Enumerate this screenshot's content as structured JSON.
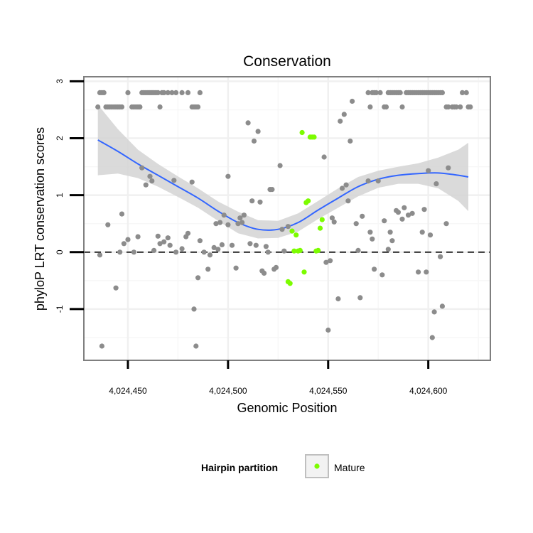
{
  "chart_data": {
    "type": "scatter",
    "title": "Conservation",
    "xlabel": "Genomic Position",
    "ylabel": "phyloP LRT conservation scores",
    "xlim": [
      4024428,
      4024631
    ],
    "ylim": [
      -1.9,
      3.08
    ],
    "x_ticks": [
      4024450,
      4024500,
      4024550,
      4024600
    ],
    "x_tick_labels": [
      "4,024,450",
      "4,024,500",
      "4,024,550",
      "4,024,600"
    ],
    "y_ticks": [
      -1,
      0,
      1,
      2,
      3
    ],
    "y_tick_labels": [
      "-1",
      "0",
      "1",
      "2",
      "3"
    ],
    "reference_line": {
      "y": 0,
      "style": "dashed"
    },
    "grid": true,
    "legend": {
      "title": "Hairpin partition",
      "position": "bottom",
      "entries": [
        {
          "label": "Mature",
          "color": "#7CFC00"
        }
      ]
    },
    "colors": {
      "points": "#8c8c8c",
      "mature": "#7CFC00",
      "smooth_line": "#3366FF",
      "ribbon": "#d3d3d3"
    },
    "series": [
      {
        "points": [
          [
            4024435,
            2.55
          ],
          [
            4024436,
            2.8
          ],
          [
            4024437,
            2.8
          ],
          [
            4024438,
            2.8
          ],
          [
            4024439,
            2.55
          ],
          [
            4024440,
            2.55
          ],
          [
            4024441,
            2.55
          ],
          [
            4024442,
            2.55
          ],
          [
            4024443,
            2.55
          ],
          [
            4024444,
            2.55
          ],
          [
            4024445,
            2.55
          ],
          [
            4024446,
            2.55
          ],
          [
            4024447,
            2.55
          ],
          [
            4024450,
            2.8
          ],
          [
            4024452,
            2.55
          ],
          [
            4024453,
            2.55
          ],
          [
            4024454,
            2.55
          ],
          [
            4024455,
            2.55
          ],
          [
            4024456,
            2.55
          ],
          [
            4024457,
            2.8
          ],
          [
            4024458,
            2.8
          ],
          [
            4024459,
            2.8
          ],
          [
            4024460,
            2.8
          ],
          [
            4024461,
            2.8
          ],
          [
            4024462,
            2.8
          ],
          [
            4024463,
            2.8
          ],
          [
            4024464,
            2.8
          ],
          [
            4024465,
            2.8
          ],
          [
            4024466,
            2.55
          ],
          [
            4024467,
            2.8
          ],
          [
            4024468,
            2.8
          ],
          [
            4024470,
            2.8
          ],
          [
            4024472,
            2.8
          ],
          [
            4024474,
            2.8
          ],
          [
            4024477,
            2.8
          ],
          [
            4024480,
            2.8
          ],
          [
            4024482,
            2.55
          ],
          [
            4024483,
            2.55
          ],
          [
            4024484,
            2.55
          ],
          [
            4024485,
            2.55
          ],
          [
            4024486,
            2.8
          ],
          [
            4024570,
            2.8
          ],
          [
            4024571,
            2.55
          ],
          [
            4024572,
            2.8
          ],
          [
            4024573,
            2.8
          ],
          [
            4024574,
            2.8
          ],
          [
            4024576,
            2.8
          ],
          [
            4024578,
            2.55
          ],
          [
            4024579,
            2.55
          ],
          [
            4024580,
            2.8
          ],
          [
            4024581,
            2.8
          ],
          [
            4024582,
            2.8
          ],
          [
            4024583,
            2.8
          ],
          [
            4024584,
            2.8
          ],
          [
            4024585,
            2.8
          ],
          [
            4024586,
            2.8
          ],
          [
            4024587,
            2.55
          ],
          [
            4024589,
            2.8
          ],
          [
            4024590,
            2.8
          ],
          [
            4024591,
            2.8
          ],
          [
            4024592,
            2.8
          ],
          [
            4024593,
            2.8
          ],
          [
            4024594,
            2.8
          ],
          [
            4024595,
            2.8
          ],
          [
            4024596,
            2.8
          ],
          [
            4024597,
            2.8
          ],
          [
            4024598,
            2.8
          ],
          [
            4024599,
            2.8
          ],
          [
            4024600,
            2.8
          ],
          [
            4024601,
            2.8
          ],
          [
            4024602,
            2.8
          ],
          [
            4024603,
            2.8
          ],
          [
            4024604,
            2.8
          ],
          [
            4024605,
            2.8
          ],
          [
            4024606,
            2.8
          ],
          [
            4024607,
            2.8
          ],
          [
            4024609,
            2.55
          ],
          [
            4024610,
            2.55
          ],
          [
            4024612,
            2.55
          ],
          [
            4024613,
            2.55
          ],
          [
            4024614,
            2.55
          ],
          [
            4024616,
            2.55
          ],
          [
            4024617,
            2.8
          ],
          [
            4024619,
            2.8
          ],
          [
            4024620,
            2.55
          ],
          [
            4024621,
            2.55
          ],
          [
            4024436,
            -0.05
          ],
          [
            4024437,
            -1.65
          ],
          [
            4024440,
            0.48
          ],
          [
            4024444,
            -0.63
          ],
          [
            4024446,
            0.0
          ],
          [
            4024447,
            0.67
          ],
          [
            4024448,
            0.15
          ],
          [
            4024450,
            0.22
          ],
          [
            4024453,
            0.0
          ],
          [
            4024455,
            0.27
          ],
          [
            4024457,
            1.48
          ],
          [
            4024459,
            1.18
          ],
          [
            4024461,
            1.33
          ],
          [
            4024462,
            1.25
          ],
          [
            4024463,
            0.03
          ],
          [
            4024465,
            0.28
          ],
          [
            4024466,
            0.15
          ],
          [
            4024468,
            0.18
          ],
          [
            4024470,
            0.25
          ],
          [
            4024471,
            0.12
          ],
          [
            4024473,
            1.26
          ],
          [
            4024474,
            0.0
          ],
          [
            4024477,
            0.06
          ],
          [
            4024479,
            0.27
          ],
          [
            4024480,
            0.33
          ],
          [
            4024482,
            1.23
          ],
          [
            4024483,
            -1.0
          ],
          [
            4024484,
            -1.65
          ],
          [
            4024485,
            -0.45
          ],
          [
            4024486,
            0.2
          ],
          [
            4024488,
            0.0
          ],
          [
            4024490,
            -0.3
          ],
          [
            4024491,
            -0.05
          ],
          [
            4024493,
            0.08
          ],
          [
            4024494,
            0.5
          ],
          [
            4024495,
            0.05
          ],
          [
            4024496,
            0.52
          ],
          [
            4024497,
            0.13
          ],
          [
            4024498,
            0.65
          ],
          [
            4024500,
            0.48
          ],
          [
            4024500,
            1.33
          ],
          [
            4024502,
            0.12
          ],
          [
            4024504,
            -0.28
          ],
          [
            4024505,
            0.5
          ],
          [
            4024506,
            0.6
          ],
          [
            4024507,
            0.52
          ],
          [
            4024508,
            0.65
          ],
          [
            4024510,
            2.27
          ],
          [
            4024511,
            0.15
          ],
          [
            4024512,
            0.9
          ],
          [
            4024513,
            1.95
          ],
          [
            4024514,
            0.12
          ],
          [
            4024515,
            2.12
          ],
          [
            4024516,
            0.88
          ],
          [
            4024517,
            -0.33
          ],
          [
            4024518,
            -0.37
          ],
          [
            4024519,
            0.1
          ],
          [
            4024520,
            0.0
          ],
          [
            4024521,
            1.1
          ],
          [
            4024522,
            1.1
          ],
          [
            4024523,
            -0.3
          ],
          [
            4024524,
            -0.27
          ],
          [
            4024526,
            1.52
          ],
          [
            4024527,
            0.4
          ],
          [
            4024528,
            0.02
          ],
          [
            4024530,
            0.45
          ],
          [
            4024548,
            1.67
          ],
          [
            4024549,
            -0.18
          ],
          [
            4024550,
            -1.37
          ],
          [
            4024551,
            -0.15
          ],
          [
            4024552,
            0.6
          ],
          [
            4024553,
            0.53
          ],
          [
            4024555,
            -0.82
          ],
          [
            4024556,
            2.3
          ],
          [
            4024557,
            1.12
          ],
          [
            4024558,
            2.42
          ],
          [
            4024559,
            1.18
          ],
          [
            4024560,
            0.9
          ],
          [
            4024561,
            1.95
          ],
          [
            4024562,
            2.65
          ],
          [
            4024564,
            0.5
          ],
          [
            4024565,
            0.03
          ],
          [
            4024566,
            -0.8
          ],
          [
            4024567,
            0.63
          ],
          [
            4024570,
            1.25
          ],
          [
            4024571,
            0.35
          ],
          [
            4024572,
            0.23
          ],
          [
            4024573,
            -0.3
          ],
          [
            4024575,
            1.25
          ],
          [
            4024577,
            -0.4
          ],
          [
            4024578,
            0.55
          ],
          [
            4024580,
            0.05
          ],
          [
            4024581,
            0.35
          ],
          [
            4024582,
            0.2
          ],
          [
            4024584,
            0.73
          ],
          [
            4024585,
            0.7
          ],
          [
            4024587,
            0.58
          ],
          [
            4024588,
            0.78
          ],
          [
            4024590,
            0.65
          ],
          [
            4024592,
            0.68
          ],
          [
            4024595,
            -0.35
          ],
          [
            4024597,
            0.35
          ],
          [
            4024598,
            0.75
          ],
          [
            4024599,
            -0.35
          ],
          [
            4024600,
            1.43
          ],
          [
            4024601,
            0.3
          ],
          [
            4024602,
            -1.5
          ],
          [
            4024603,
            -1.05
          ],
          [
            4024604,
            1.2
          ],
          [
            4024606,
            -0.08
          ],
          [
            4024607,
            -0.95
          ],
          [
            4024609,
            0.5
          ],
          [
            4024610,
            1.48
          ]
        ]
      },
      {
        "name": "Mature",
        "points": [
          [
            4024530,
            -0.52
          ],
          [
            4024531,
            -0.55
          ],
          [
            4024532,
            0.37
          ],
          [
            4024533,
            0.02
          ],
          [
            4024534,
            0.3
          ],
          [
            4024535,
            0.02
          ],
          [
            4024536,
            0.03
          ],
          [
            4024537,
            2.1
          ],
          [
            4024538,
            -0.35
          ],
          [
            4024539,
            0.87
          ],
          [
            4024540,
            0.9
          ],
          [
            4024541,
            2.02
          ],
          [
            4024542,
            2.02
          ],
          [
            4024543,
            2.02
          ],
          [
            4024544,
            0.02
          ],
          [
            4024545,
            0.03
          ],
          [
            4024546,
            0.42
          ],
          [
            4024547,
            0.57
          ]
        ]
      }
    ],
    "smooth": {
      "x": [
        4024435,
        4024445,
        4024455,
        4024465,
        4024475,
        4024485,
        4024495,
        4024505,
        4024515,
        4024525,
        4024535,
        4024545,
        4024555,
        4024565,
        4024575,
        4024585,
        4024595,
        4024605,
        4024615,
        4024620
      ],
      "y": [
        1.97,
        1.77,
        1.55,
        1.35,
        1.15,
        0.95,
        0.72,
        0.52,
        0.4,
        0.4,
        0.52,
        0.74,
        0.95,
        1.15,
        1.28,
        1.35,
        1.38,
        1.39,
        1.35,
        1.32
      ],
      "lower": [
        1.35,
        1.38,
        1.3,
        1.15,
        0.97,
        0.78,
        0.55,
        0.33,
        0.24,
        0.25,
        0.36,
        0.58,
        0.78,
        0.98,
        1.13,
        1.2,
        1.2,
        1.12,
        0.9,
        0.72
      ],
      "upper": [
        2.59,
        2.16,
        1.8,
        1.55,
        1.33,
        1.12,
        0.89,
        0.71,
        0.56,
        0.55,
        0.68,
        0.9,
        1.12,
        1.32,
        1.43,
        1.5,
        1.56,
        1.66,
        1.8,
        1.92
      ]
    }
  }
}
